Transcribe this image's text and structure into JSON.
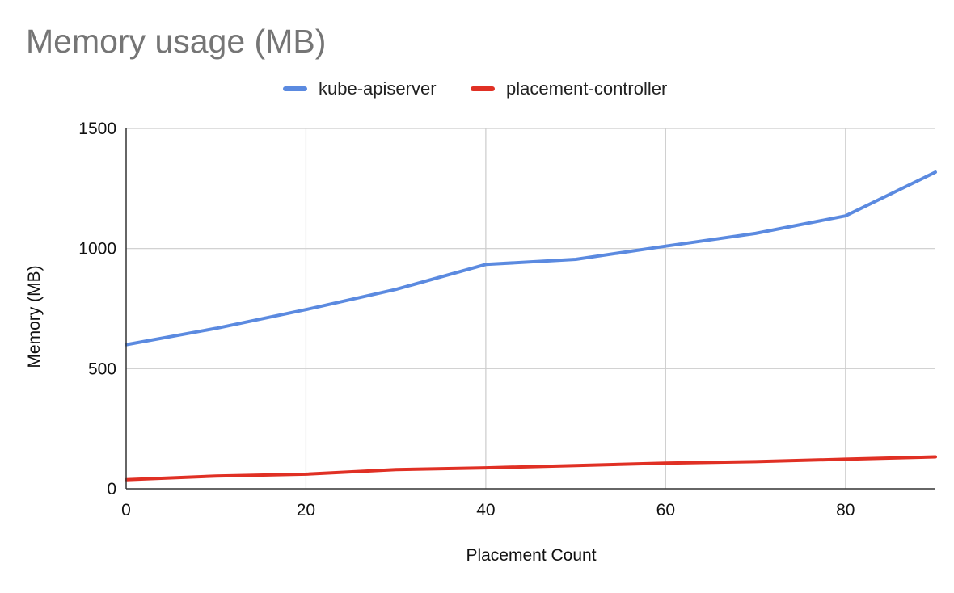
{
  "chart_data": {
    "type": "line",
    "title": "Memory usage (MB)",
    "xlabel": "Placement Count",
    "ylabel": "Memory (MB)",
    "x": [
      0,
      10,
      20,
      30,
      40,
      50,
      60,
      70,
      80,
      90
    ],
    "series": [
      {
        "name": "kube-apiserver",
        "color": "#5b8ae0",
        "values": [
          600,
          668,
          746,
          830,
          934,
          955,
          1010,
          1063,
          1136,
          1318
        ]
      },
      {
        "name": "placement-controller",
        "color": "#e03024",
        "values": [
          38,
          53,
          61,
          80,
          87,
          97,
          107,
          113,
          123,
          133
        ]
      }
    ],
    "xlim": [
      0,
      90
    ],
    "ylim": [
      0,
      1500
    ],
    "x_ticks": [
      0,
      20,
      40,
      60,
      80
    ],
    "y_ticks": [
      0,
      500,
      1000,
      1500
    ],
    "x_tick_labels": [
      "0",
      "20",
      "40",
      "60",
      "80"
    ],
    "y_tick_labels": [
      "0",
      "500",
      "1000",
      "1500"
    ],
    "grid": true,
    "legend_position": "top"
  }
}
